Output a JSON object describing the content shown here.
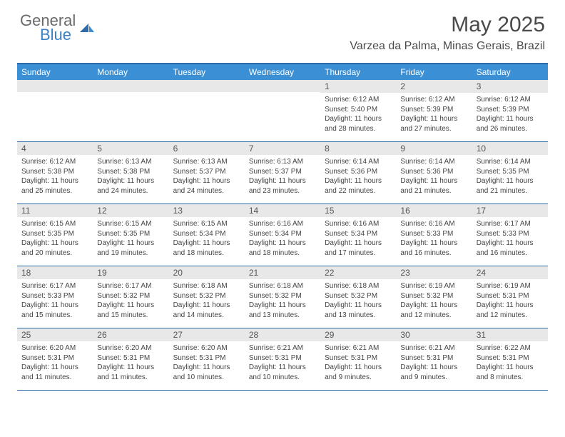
{
  "brand": {
    "name_gray": "General",
    "name_blue": "Blue"
  },
  "title": "May 2025",
  "location": "Varzea da Palma, Minas Gerais, Brazil",
  "colors": {
    "header_bar": "#3b8fd4",
    "border": "#2d6aa8",
    "daynum_bg": "#e8e8e8",
    "text": "#333333"
  },
  "weekdays": [
    "Sunday",
    "Monday",
    "Tuesday",
    "Wednesday",
    "Thursday",
    "Friday",
    "Saturday"
  ],
  "weeks": [
    [
      {
        "n": "",
        "sr": "",
        "ss": "",
        "dl": ""
      },
      {
        "n": "",
        "sr": "",
        "ss": "",
        "dl": ""
      },
      {
        "n": "",
        "sr": "",
        "ss": "",
        "dl": ""
      },
      {
        "n": "",
        "sr": "",
        "ss": "",
        "dl": ""
      },
      {
        "n": "1",
        "sr": "6:12 AM",
        "ss": "5:40 PM",
        "dl": "11 hours and 28 minutes."
      },
      {
        "n": "2",
        "sr": "6:12 AM",
        "ss": "5:39 PM",
        "dl": "11 hours and 27 minutes."
      },
      {
        "n": "3",
        "sr": "6:12 AM",
        "ss": "5:39 PM",
        "dl": "11 hours and 26 minutes."
      }
    ],
    [
      {
        "n": "4",
        "sr": "6:12 AM",
        "ss": "5:38 PM",
        "dl": "11 hours and 25 minutes."
      },
      {
        "n": "5",
        "sr": "6:13 AM",
        "ss": "5:38 PM",
        "dl": "11 hours and 24 minutes."
      },
      {
        "n": "6",
        "sr": "6:13 AM",
        "ss": "5:37 PM",
        "dl": "11 hours and 24 minutes."
      },
      {
        "n": "7",
        "sr": "6:13 AM",
        "ss": "5:37 PM",
        "dl": "11 hours and 23 minutes."
      },
      {
        "n": "8",
        "sr": "6:14 AM",
        "ss": "5:36 PM",
        "dl": "11 hours and 22 minutes."
      },
      {
        "n": "9",
        "sr": "6:14 AM",
        "ss": "5:36 PM",
        "dl": "11 hours and 21 minutes."
      },
      {
        "n": "10",
        "sr": "6:14 AM",
        "ss": "5:35 PM",
        "dl": "11 hours and 21 minutes."
      }
    ],
    [
      {
        "n": "11",
        "sr": "6:15 AM",
        "ss": "5:35 PM",
        "dl": "11 hours and 20 minutes."
      },
      {
        "n": "12",
        "sr": "6:15 AM",
        "ss": "5:35 PM",
        "dl": "11 hours and 19 minutes."
      },
      {
        "n": "13",
        "sr": "6:15 AM",
        "ss": "5:34 PM",
        "dl": "11 hours and 18 minutes."
      },
      {
        "n": "14",
        "sr": "6:16 AM",
        "ss": "5:34 PM",
        "dl": "11 hours and 18 minutes."
      },
      {
        "n": "15",
        "sr": "6:16 AM",
        "ss": "5:34 PM",
        "dl": "11 hours and 17 minutes."
      },
      {
        "n": "16",
        "sr": "6:16 AM",
        "ss": "5:33 PM",
        "dl": "11 hours and 16 minutes."
      },
      {
        "n": "17",
        "sr": "6:17 AM",
        "ss": "5:33 PM",
        "dl": "11 hours and 16 minutes."
      }
    ],
    [
      {
        "n": "18",
        "sr": "6:17 AM",
        "ss": "5:33 PM",
        "dl": "11 hours and 15 minutes."
      },
      {
        "n": "19",
        "sr": "6:17 AM",
        "ss": "5:32 PM",
        "dl": "11 hours and 15 minutes."
      },
      {
        "n": "20",
        "sr": "6:18 AM",
        "ss": "5:32 PM",
        "dl": "11 hours and 14 minutes."
      },
      {
        "n": "21",
        "sr": "6:18 AM",
        "ss": "5:32 PM",
        "dl": "11 hours and 13 minutes."
      },
      {
        "n": "22",
        "sr": "6:18 AM",
        "ss": "5:32 PM",
        "dl": "11 hours and 13 minutes."
      },
      {
        "n": "23",
        "sr": "6:19 AM",
        "ss": "5:32 PM",
        "dl": "11 hours and 12 minutes."
      },
      {
        "n": "24",
        "sr": "6:19 AM",
        "ss": "5:31 PM",
        "dl": "11 hours and 12 minutes."
      }
    ],
    [
      {
        "n": "25",
        "sr": "6:20 AM",
        "ss": "5:31 PM",
        "dl": "11 hours and 11 minutes."
      },
      {
        "n": "26",
        "sr": "6:20 AM",
        "ss": "5:31 PM",
        "dl": "11 hours and 11 minutes."
      },
      {
        "n": "27",
        "sr": "6:20 AM",
        "ss": "5:31 PM",
        "dl": "11 hours and 10 minutes."
      },
      {
        "n": "28",
        "sr": "6:21 AM",
        "ss": "5:31 PM",
        "dl": "11 hours and 10 minutes."
      },
      {
        "n": "29",
        "sr": "6:21 AM",
        "ss": "5:31 PM",
        "dl": "11 hours and 9 minutes."
      },
      {
        "n": "30",
        "sr": "6:21 AM",
        "ss": "5:31 PM",
        "dl": "11 hours and 9 minutes."
      },
      {
        "n": "31",
        "sr": "6:22 AM",
        "ss": "5:31 PM",
        "dl": "11 hours and 8 minutes."
      }
    ]
  ],
  "labels": {
    "sunrise": "Sunrise:",
    "sunset": "Sunset:",
    "daylight": "Daylight:"
  }
}
